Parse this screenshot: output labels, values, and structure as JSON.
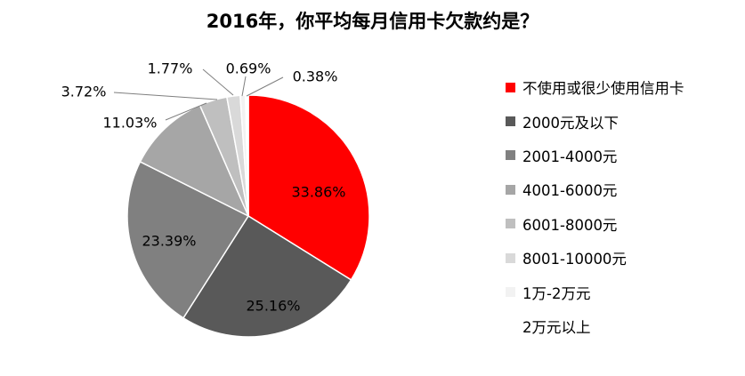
{
  "chart_data": {
    "type": "pie",
    "title": "2016年，你平均每月信用卡欠款约是？",
    "legend_position": "right",
    "categories": [
      "不使用或很少使用信用卡",
      "2000元及以下",
      "2001-4000元",
      "4001-6000元",
      "6001-8000元",
      "8001-10000元",
      "1万-2万元",
      "2万元以上"
    ],
    "values": [
      33.86,
      25.16,
      23.39,
      11.03,
      3.72,
      1.77,
      0.69,
      0.38
    ],
    "data_labels": [
      "33.86%",
      "25.16%",
      "23.39%",
      "11.03%",
      "3.72%",
      "1.77%",
      "0.69%",
      "0.38%"
    ],
    "colors": [
      "#ff0000",
      "#595959",
      "#808080",
      "#a6a6a6",
      "#bfbfbf",
      "#d9d9d9",
      "#f2f2f2",
      "#ffffff"
    ]
  }
}
